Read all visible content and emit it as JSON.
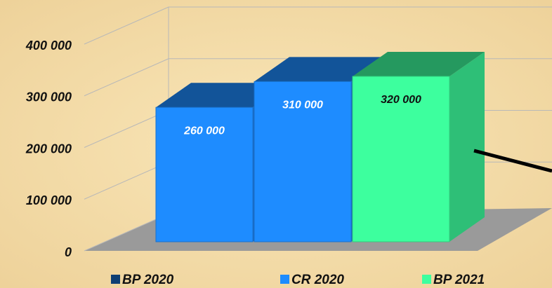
{
  "chart_data": {
    "type": "bar3d",
    "series": [
      {
        "name": "BP 2020",
        "color": "#1e8cff",
        "label_color": "#ffffff",
        "values": [
          260000
        ],
        "value_labels": [
          "260 000"
        ]
      },
      {
        "name": "CR 2020",
        "color": "#1e8cff",
        "label_color": "#ffffff",
        "values": [
          310000
        ],
        "value_labels": [
          "310 000"
        ]
      },
      {
        "name": "BP 2021",
        "color": "#3dff9e",
        "label_color": "#111111",
        "values": [
          320000
        ],
        "value_labels": [
          "320 000"
        ]
      }
    ],
    "ylim": [
      0,
      400000
    ],
    "yticks": [
      {
        "value": 0,
        "label": "0"
      },
      {
        "value": 100000,
        "label": "100 000"
      },
      {
        "value": 200000,
        "label": "200 000"
      },
      {
        "value": 300000,
        "label": "300 000"
      },
      {
        "value": 400000,
        "label": "400 000"
      }
    ],
    "grid": true,
    "legend": "bottom"
  }
}
